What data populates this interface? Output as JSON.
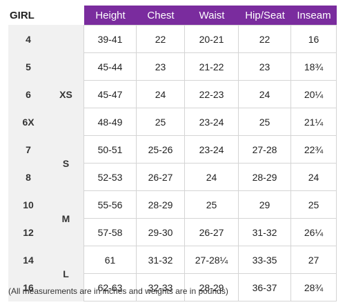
{
  "title": "GIRL",
  "headers": [
    "Height",
    "Chest",
    "Waist",
    "Hip/Seat",
    "Inseam"
  ],
  "rows": [
    {
      "size": "4",
      "values": [
        "39-41",
        "22",
        "20-21",
        "22",
        "16"
      ]
    },
    {
      "size": "5",
      "values": [
        "45-44",
        "23",
        "21-22",
        "23",
        "18¾"
      ]
    },
    {
      "size": "6",
      "values": [
        "45-47",
        "24",
        "22-23",
        "24",
        "20¼"
      ]
    },
    {
      "size": "6X",
      "values": [
        "48-49",
        "25",
        "23-24",
        "25",
        "21¼"
      ]
    },
    {
      "size": "7",
      "values": [
        "50-51",
        "25-26",
        "23-24",
        "27-28",
        "22¾"
      ]
    },
    {
      "size": "8",
      "values": [
        "52-53",
        "26-27",
        "24",
        "28-29",
        "24"
      ]
    },
    {
      "size": "10",
      "values": [
        "55-56",
        "28-29",
        "25",
        "29",
        "25"
      ]
    },
    {
      "size": "12",
      "values": [
        "57-58",
        "29-30",
        "26-27",
        "31-32",
        "26¼"
      ]
    },
    {
      "size": "14",
      "values": [
        "61",
        "31-32",
        "27-28¼",
        "33-35",
        "27"
      ]
    },
    {
      "size": "16",
      "values": [
        "62-63",
        "32-33",
        "28-29",
        "36-37",
        "28¾"
      ]
    }
  ],
  "groups": [
    {
      "label": "XS",
      "start_row": 1,
      "span": 3
    },
    {
      "label": "S",
      "start_row": 4,
      "span": 2
    },
    {
      "label": "M",
      "start_row": 6,
      "span": 2
    },
    {
      "label": "L",
      "start_row": 8,
      "span": 2
    }
  ],
  "footnote": "(All measurements are in inches and weights are in pounds)",
  "colors": {
    "header_bg": "#7a2c9e",
    "header_text": "#ffffff",
    "side_bg": "#f1f1f1"
  }
}
